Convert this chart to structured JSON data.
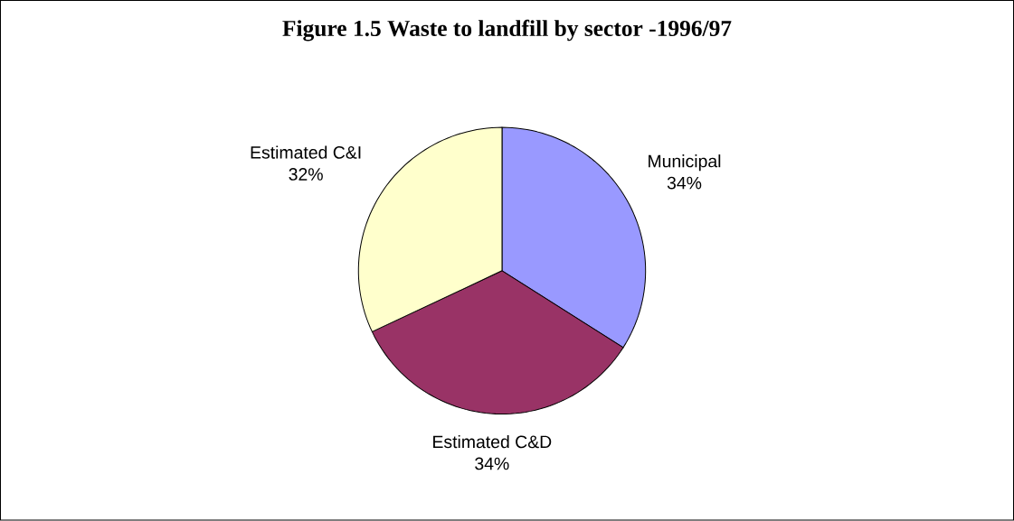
{
  "chart_data": {
    "type": "pie",
    "title": "Figure 1.5 Waste to landfill by sector -1996/97",
    "categories": [
      "Municipal",
      "Estimated C&D",
      "Estimated C&I"
    ],
    "values": [
      34,
      34,
      32
    ],
    "value_labels": [
      "34%",
      "34%",
      "32%"
    ],
    "colors": [
      "#9999ff",
      "#993366",
      "#ffffcc"
    ]
  }
}
